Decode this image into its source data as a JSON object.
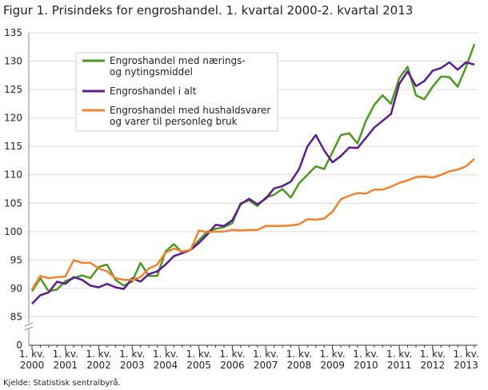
{
  "chart_data": {
    "type": "line",
    "title": "Figur 1. Prisindeks for engroshandel. 1. kvartal 2000-2. kvartal 2013",
    "source": "Kjelde: Statistisk sentralbyrå.",
    "categories": [
      "1. kv.\n2000",
      null,
      null,
      null,
      "1. kv.\n2001",
      null,
      null,
      null,
      "1. kv.\n2002",
      null,
      null,
      null,
      "1. kv.\n2003",
      null,
      null,
      null,
      "1. kv.\n2004",
      null,
      null,
      null,
      "1. kv.\n2005",
      null,
      null,
      null,
      "1. kv.\n2006",
      null,
      null,
      null,
      "1. kv.\n2007",
      null,
      null,
      null,
      "1. kv.\n2008",
      null,
      null,
      null,
      "1. kv.\n2009",
      null,
      null,
      null,
      "1. kv.\n2010",
      null,
      null,
      null,
      "1. kv.\n2011",
      null,
      null,
      null,
      "1. kv.\n2012",
      null,
      null,
      null,
      "1. kv.\n2013",
      null
    ],
    "series": [
      {
        "name": "Engroshandel med nærings-\nog nytingsmiddel",
        "color": "#4a9a1f",
        "values": [
          89.5,
          91.8,
          89.5,
          89.8,
          91.3,
          91.8,
          92.3,
          91.8,
          93.8,
          94.2,
          91.5,
          90.5,
          91.2,
          94.5,
          92.2,
          92.2,
          96.5,
          97.8,
          96.3,
          96.8,
          98.5,
          100.0,
          100.5,
          100.8,
          101.5,
          105.0,
          105.5,
          104.5,
          106.0,
          106.5,
          107.5,
          106.0,
          108.5,
          110.0,
          111.5,
          111.0,
          114.0,
          117.0,
          117.3,
          115.5,
          119.5,
          122.3,
          124.0,
          122.5,
          127.0,
          129.0,
          124.0,
          123.3,
          125.5,
          127.3,
          127.2,
          125.5,
          129.0,
          133.0
        ]
      },
      {
        "name": "Engroshandel i alt",
        "color": "#5e1a8e",
        "values": [
          87.3,
          88.8,
          89.3,
          91.2,
          90.8,
          92.0,
          91.5,
          90.5,
          90.2,
          90.8,
          90.2,
          89.9,
          91.8,
          91.2,
          92.5,
          93.0,
          94.2,
          95.7,
          96.2,
          96.8,
          98.0,
          99.5,
          101.2,
          101.0,
          102.0,
          104.8,
          105.8,
          104.8,
          105.8,
          107.6,
          108.0,
          108.8,
          111.0,
          115.0,
          117.0,
          114.3,
          112.2,
          113.3,
          114.8,
          114.7,
          116.5,
          118.3,
          119.5,
          120.7,
          126.0,
          128.2,
          125.6,
          126.5,
          128.3,
          128.8,
          129.8,
          128.5,
          129.8,
          129.4
        ]
      },
      {
        "name": "Engroshandel med hushaldsvarer\nog varer til personleg bruk",
        "color": "#f0822d",
        "values": [
          89.8,
          92.2,
          91.8,
          92.0,
          92.1,
          95.0,
          94.5,
          94.5,
          93.5,
          93.0,
          91.8,
          91.5,
          91.5,
          92.0,
          93.5,
          94.2,
          96.3,
          97.0,
          96.5,
          96.8,
          100.2,
          99.9,
          100.0,
          100.0,
          100.3,
          100.2,
          100.3,
          100.3,
          101.0,
          101.0,
          101.0,
          101.1,
          101.3,
          102.2,
          102.1,
          102.3,
          103.5,
          105.7,
          106.3,
          106.8,
          106.7,
          107.4,
          107.4,
          107.9,
          108.6,
          109.0,
          109.6,
          109.7,
          109.5,
          110.0,
          110.6,
          110.9,
          111.5,
          112.8
        ]
      }
    ],
    "ylim": [
      80,
      135
    ],
    "yticks": [
      0,
      85,
      90,
      95,
      100,
      105,
      110,
      115,
      120,
      125,
      130,
      135
    ],
    "axis_break": true,
    "grid": true,
    "legend": "upper left"
  }
}
